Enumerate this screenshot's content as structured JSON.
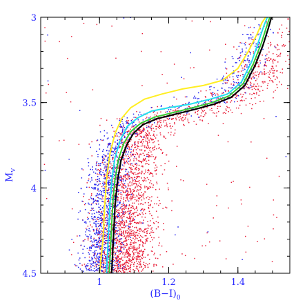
{
  "chart_data": {
    "type": "scatter",
    "title": "",
    "xlabel": "(B−I)",
    "xlabel_subscript": "0",
    "ylabel": "M",
    "ylabel_subscript": "V",
    "xlim": [
      0.83,
      1.55
    ],
    "ylim": [
      3.0,
      4.5
    ],
    "y_inverted": true,
    "grid": false,
    "x_ticks": [
      {
        "value": 1.0,
        "label": "1"
      },
      {
        "value": 1.2,
        "label": "1.2"
      },
      {
        "value": 1.4,
        "label": "1.4"
      }
    ],
    "y_ticks": [
      {
        "value": 3.0,
        "label": "3"
      },
      {
        "value": 3.5,
        "label": "3.5"
      },
      {
        "value": 4.0,
        "label": "4"
      },
      {
        "value": 4.5,
        "label": "4.5"
      }
    ],
    "x_minor_step": 0.05,
    "y_minor_step": 0.1,
    "colors": {
      "axis": "#000000",
      "label": "#2a2aff",
      "points_red": "#e8203a",
      "points_blue": "#2222ee",
      "isochrone_yellow": "#ffee22",
      "isochrone_cyan": "#22e0ee",
      "isochrone_green": "#33cc33",
      "isochrone_black": "#000000"
    },
    "series": [
      {
        "type": "line",
        "color": "#ffee22",
        "x": [
          1.0,
          1.01,
          1.015,
          1.02,
          1.03,
          1.045,
          1.065,
          1.09,
          1.13,
          1.18,
          1.24,
          1.3,
          1.355,
          1.4,
          1.43,
          1.455,
          1.47,
          1.48
        ],
        "y": [
          4.5,
          4.3,
          4.1,
          3.95,
          3.8,
          3.68,
          3.59,
          3.53,
          3.48,
          3.45,
          3.42,
          3.4,
          3.37,
          3.3,
          3.2,
          3.1,
          3.03,
          3.0
        ]
      },
      {
        "type": "line",
        "color": "#22e0ee",
        "x": [
          1.02,
          1.025,
          1.03,
          1.035,
          1.045,
          1.06,
          1.08,
          1.11,
          1.15,
          1.2,
          1.26,
          1.32,
          1.37,
          1.41,
          1.44,
          1.46,
          1.475,
          1.485
        ],
        "y": [
          4.5,
          4.3,
          4.1,
          3.96,
          3.82,
          3.72,
          3.64,
          3.59,
          3.55,
          3.53,
          3.51,
          3.48,
          3.45,
          3.38,
          3.26,
          3.14,
          3.05,
          3.0
        ]
      },
      {
        "type": "line",
        "color": "#33cc33",
        "x": [
          1.028,
          1.033,
          1.038,
          1.044,
          1.055,
          1.07,
          1.09,
          1.12,
          1.16,
          1.21,
          1.27,
          1.325,
          1.375,
          1.415,
          1.445,
          1.468,
          1.482,
          1.492
        ],
        "y": [
          4.5,
          4.3,
          4.1,
          3.96,
          3.83,
          3.74,
          3.67,
          3.62,
          3.585,
          3.56,
          3.53,
          3.5,
          3.46,
          3.39,
          3.27,
          3.15,
          3.06,
          3.0
        ]
      },
      {
        "type": "line",
        "color": "#000000",
        "x": [
          1.035,
          1.04,
          1.045,
          1.052,
          1.062,
          1.078,
          1.098,
          1.125,
          1.165,
          1.215,
          1.275,
          1.33,
          1.38,
          1.42,
          1.45,
          1.473,
          1.487,
          1.497
        ],
        "y": [
          4.5,
          4.3,
          4.1,
          3.96,
          3.84,
          3.75,
          3.68,
          3.63,
          3.595,
          3.57,
          3.54,
          3.51,
          3.47,
          3.4,
          3.28,
          3.16,
          3.07,
          3.0
        ]
      }
    ],
    "scatter_clouds": [
      {
        "color": "#e8203a",
        "n_points": 2600,
        "ridge_offset_x": 0.035,
        "spread_x": 0.045,
        "spread_y": 0.03,
        "outlier_fraction": 0.04
      },
      {
        "color": "#2222ee",
        "n_points": 1300,
        "ridge_offset_x": -0.025,
        "spread_x": 0.03,
        "spread_y": 0.025,
        "outlier_fraction": 0.02
      }
    ]
  }
}
